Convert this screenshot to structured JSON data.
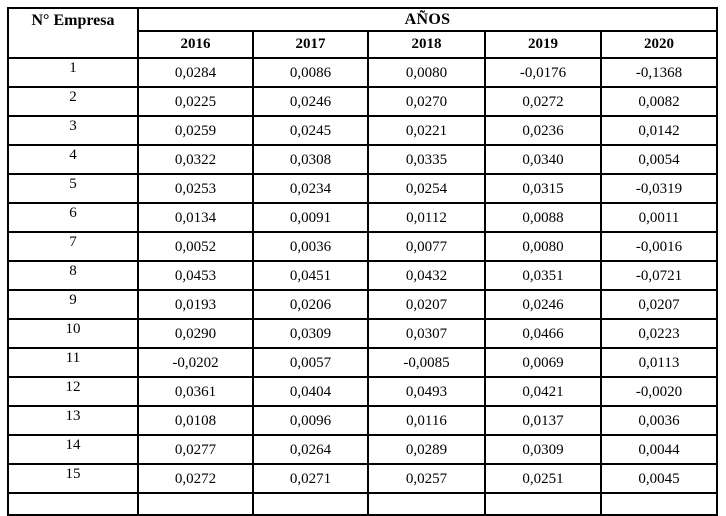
{
  "table": {
    "corner_header": "N° Empresa",
    "group_header": "AÑOS",
    "years": [
      "2016",
      "2017",
      "2018",
      "2019",
      "2020"
    ],
    "rows": [
      {
        "empresa": "1",
        "values": [
          "0,0284",
          "0,0086",
          "0,0080",
          "-0,0176",
          "-0,1368"
        ]
      },
      {
        "empresa": "2",
        "values": [
          "0,0225",
          "0,0246",
          "0,0270",
          "0,0272",
          "0,0082"
        ]
      },
      {
        "empresa": "3",
        "values": [
          "0,0259",
          "0,0245",
          "0,0221",
          "0,0236",
          "0,0142"
        ]
      },
      {
        "empresa": "4",
        "values": [
          "0,0322",
          "0,0308",
          "0,0335",
          "0,0340",
          "0,0054"
        ]
      },
      {
        "empresa": "5",
        "values": [
          "0,0253",
          "0,0234",
          "0,0254",
          "0,0315",
          "-0,0319"
        ]
      },
      {
        "empresa": "6",
        "values": [
          "0,0134",
          "0,0091",
          "0,0112",
          "0,0088",
          "0,0011"
        ]
      },
      {
        "empresa": "7",
        "values": [
          "0,0052",
          "0,0036",
          "0,0077",
          "0,0080",
          "-0,0016"
        ]
      },
      {
        "empresa": "8",
        "values": [
          "0,0453",
          "0,0451",
          "0,0432",
          "0,0351",
          "-0,0721"
        ]
      },
      {
        "empresa": "9",
        "values": [
          "0,0193",
          "0,0206",
          "0,0207",
          "0,0246",
          "0,0207"
        ]
      },
      {
        "empresa": "10",
        "values": [
          "0,0290",
          "0,0309",
          "0,0307",
          "0,0466",
          "0,0223"
        ]
      },
      {
        "empresa": "11",
        "values": [
          "-0,0202",
          "0,0057",
          "-0,0085",
          "0,0069",
          "0,0113"
        ]
      },
      {
        "empresa": "12",
        "values": [
          "0,0361",
          "0,0404",
          "0,0493",
          "0,0421",
          "-0,0020"
        ]
      },
      {
        "empresa": "13",
        "values": [
          "0,0108",
          "0,0096",
          "0,0116",
          "0,0137",
          "0,0036"
        ]
      },
      {
        "empresa": "14",
        "values": [
          "0,0277",
          "0,0264",
          "0,0289",
          "0,0309",
          "0,0044"
        ]
      },
      {
        "empresa": "15",
        "values": [
          "0,0272",
          "0,0271",
          "0,0257",
          "0,0251",
          "0,0045"
        ]
      }
    ],
    "border_color": "#000000",
    "text_color": "#000000",
    "background_color": "#ffffff"
  }
}
